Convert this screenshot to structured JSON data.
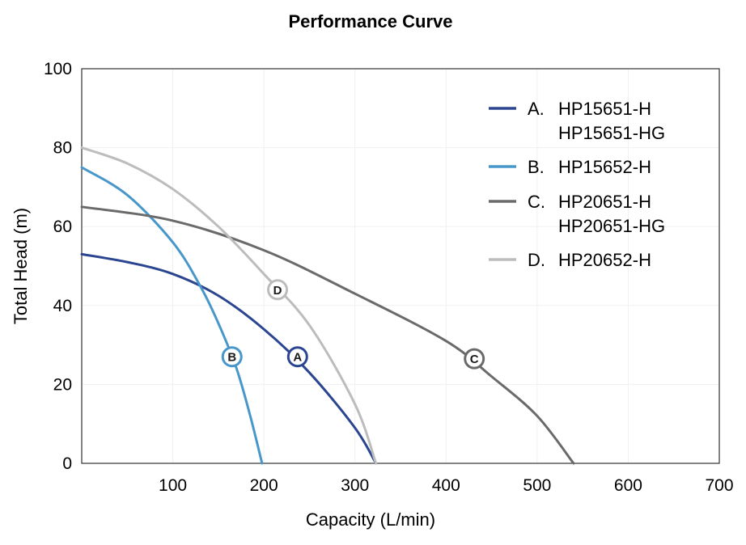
{
  "chart_data": {
    "type": "line",
    "title": "Performance Curve",
    "xlabel": "Capacity (L/min)",
    "ylabel": "Total Head (m)",
    "xlim": [
      0,
      700
    ],
    "ylim": [
      0,
      100
    ],
    "x_ticks": [
      100,
      200,
      300,
      400,
      500,
      600,
      700
    ],
    "y_ticks": [
      0,
      20,
      40,
      60,
      80,
      100
    ],
    "grid": true,
    "legend_position": "top-right",
    "series": [
      {
        "letter": "A.",
        "marker_label": "A",
        "lines": [
          "HP15651-H",
          "HP15651-HG"
        ],
        "color": "#2b4590",
        "x": [
          0,
          50,
          100,
          150,
          200,
          250,
          300,
          323
        ],
        "y": [
          53,
          51,
          48,
          42.5,
          34,
          23,
          9,
          0
        ],
        "marker": [
          237,
          27
        ]
      },
      {
        "letter": "B.",
        "marker_label": "B",
        "lines": [
          "HP15652-H"
        ],
        "color": "#4797cb",
        "x": [
          0,
          50,
          100,
          130,
          150,
          170,
          185,
          198
        ],
        "y": [
          75,
          68,
          56,
          45,
          35.5,
          24,
          12,
          0
        ],
        "marker": [
          165,
          27
        ]
      },
      {
        "letter": "C.",
        "marker_label": "C",
        "lines": [
          "HP20651-H",
          "HP20651-HG"
        ],
        "color": "#6a6a6a",
        "x": [
          0,
          100,
          200,
          300,
          400,
          450,
          500,
          540
        ],
        "y": [
          65,
          61.5,
          54,
          43,
          31,
          22,
          12,
          0
        ],
        "marker": [
          431,
          26.5
        ]
      },
      {
        "letter": "D.",
        "marker_label": "D",
        "lines": [
          "HP20652-H"
        ],
        "color": "#bcbcbc",
        "x": [
          0,
          50,
          100,
          150,
          200,
          250,
          300,
          323
        ],
        "y": [
          80,
          76,
          69.5,
          60,
          48,
          35,
          15,
          0
        ],
        "marker": [
          215,
          44
        ]
      }
    ]
  }
}
